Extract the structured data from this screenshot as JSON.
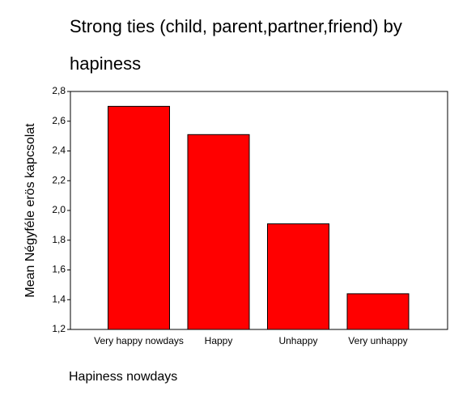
{
  "chart_data": {
    "type": "bar",
    "title": "Strong ties (child, parent,partner,friend)  by hapiness",
    "y_label": "Mean Négyféle erös kapcsolat",
    "x_label": "Hapiness nowdays",
    "categories": [
      "Very happy nowdays",
      "Happy",
      "Unhappy",
      "Very unhappy"
    ],
    "values": [
      2.7,
      2.51,
      1.91,
      1.44
    ],
    "color": "#ff0000",
    "ylim": [
      1.2,
      2.8
    ],
    "yticks": [
      {
        "value": 1.2,
        "label": "1,2"
      },
      {
        "value": 1.4,
        "label": "1,4"
      },
      {
        "value": 1.6,
        "label": "1,6"
      },
      {
        "value": 1.8,
        "label": "1,8"
      },
      {
        "value": 2.0,
        "label": "2,0"
      },
      {
        "value": 2.2,
        "label": "2,2"
      },
      {
        "value": 2.4,
        "label": "2,4"
      },
      {
        "value": 2.6,
        "label": "2,6"
      },
      {
        "value": 2.8,
        "label": "2,8"
      }
    ]
  }
}
